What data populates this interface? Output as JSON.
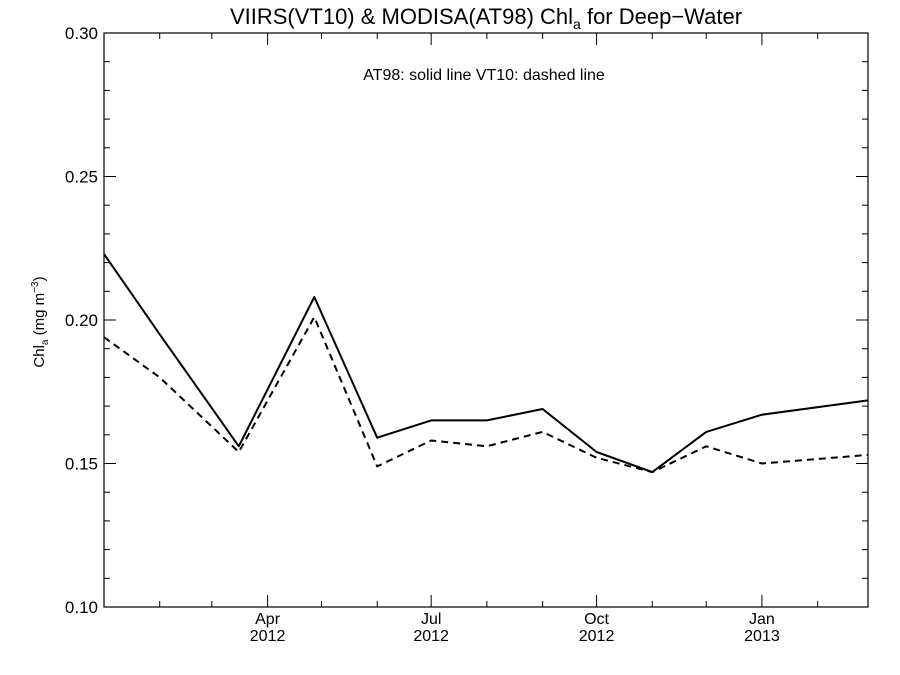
{
  "chart_data": {
    "type": "line",
    "title": {
      "main": "VIIRS(VT10) & MODISA(AT98)  Chl",
      "sub": "a",
      "tail": " for Deep−Water"
    },
    "ylabel": {
      "main": "Chl",
      "sub": "a",
      "unit": " (mg m",
      "sup": "−3",
      "close": ")"
    },
    "annotation": "AT98: solid line   VT10: dashed line",
    "ylim": [
      0.1,
      0.3
    ],
    "yticks": [
      {
        "value": 0.1,
        "label": "0.10"
      },
      {
        "value": 0.15,
        "label": "0.15"
      },
      {
        "value": 0.2,
        "label": "0.20"
      },
      {
        "value": 0.25,
        "label": "0.25"
      },
      {
        "value": 0.3,
        "label": "0.30"
      }
    ],
    "xlim": [
      "2012-01-01",
      "2013-03-01"
    ],
    "xticks": [
      {
        "date": "2012-04-01",
        "month": "Apr",
        "year": "2012"
      },
      {
        "date": "2012-07-01",
        "month": "Jul",
        "year": "2012"
      },
      {
        "date": "2012-10-01",
        "month": "Oct",
        "year": "2012"
      },
      {
        "date": "2013-01-01",
        "month": "Jan",
        "year": "2013"
      }
    ],
    "x": [
      "2012-01-01",
      "2012-02-01",
      "2012-03-16",
      "2012-04-27",
      "2012-06-01",
      "2012-07-01",
      "2012-08-01",
      "2012-09-01",
      "2012-10-01",
      "2012-11-01",
      "2012-12-01",
      "2013-01-01",
      "2013-03-01"
    ],
    "series": [
      {
        "name": "AT98",
        "style": "solid",
        "values": [
          0.223,
          0.195,
          0.156,
          0.208,
          0.159,
          0.165,
          0.165,
          0.169,
          0.154,
          0.147,
          0.161,
          0.167,
          0.172
        ]
      },
      {
        "name": "VT10",
        "style": "dashed",
        "values": [
          0.194,
          0.18,
          0.154,
          0.201,
          0.149,
          0.158,
          0.156,
          0.161,
          0.152,
          0.147,
          0.156,
          0.15,
          0.153
        ]
      }
    ],
    "grid": false,
    "legend": "none"
  }
}
